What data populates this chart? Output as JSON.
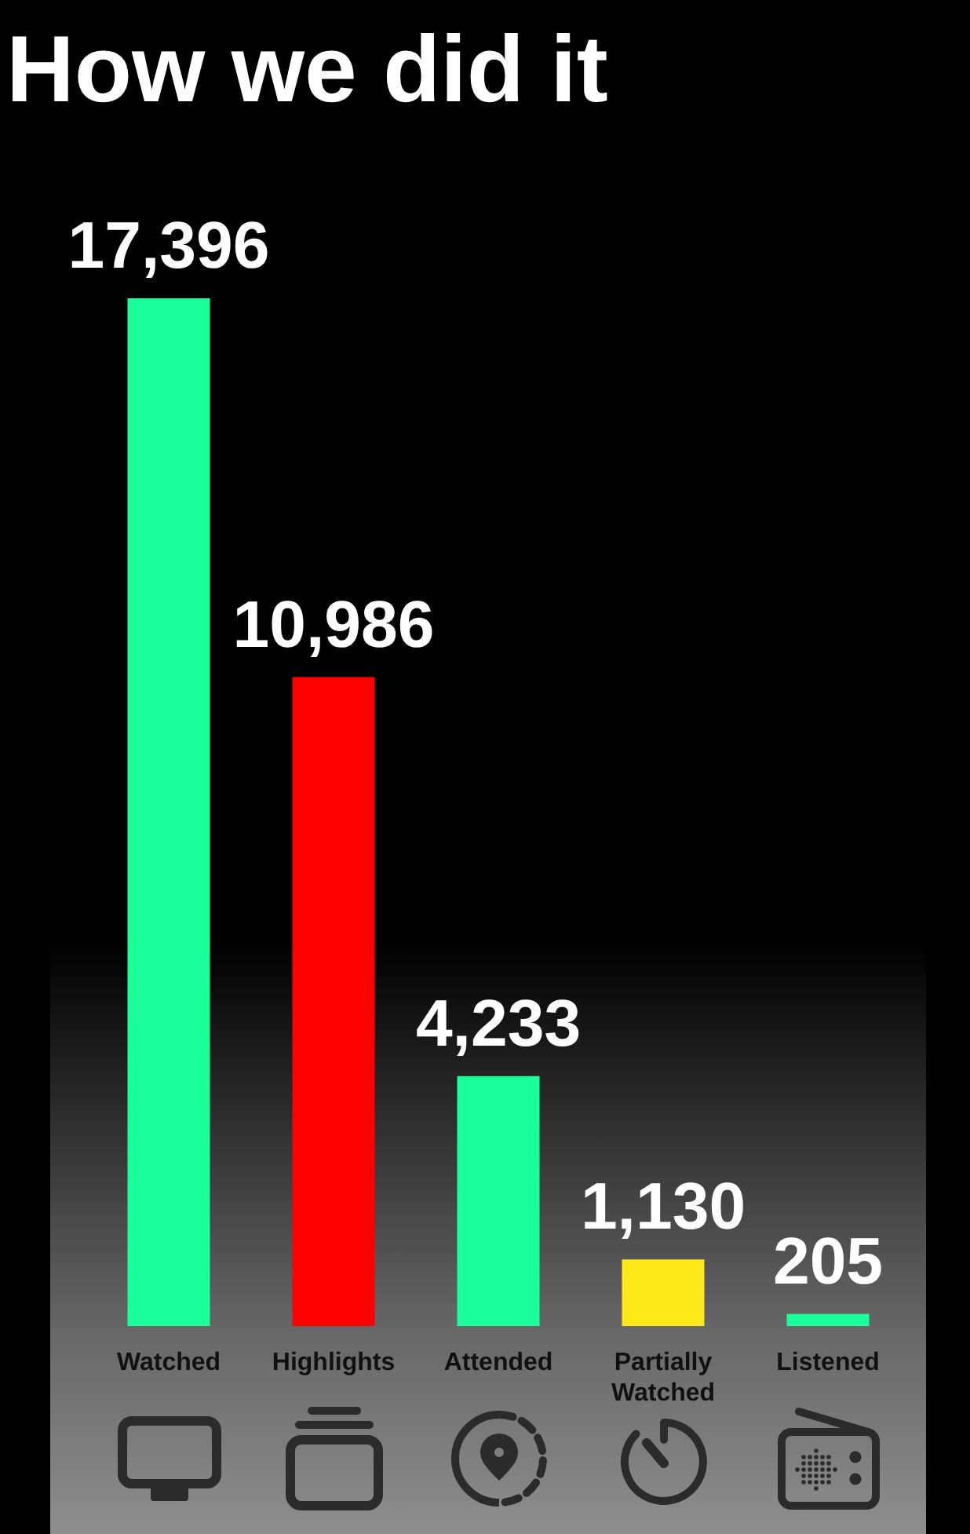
{
  "chart_data": {
    "type": "bar",
    "title": "How we did it",
    "categories": [
      "Watched",
      "Highlights",
      "Attended",
      "Partially Watched",
      "Listened"
    ],
    "values": [
      17396,
      10986,
      4233,
      1130,
      205
    ],
    "value_labels": [
      "17,396",
      "10,986",
      "4,233",
      "1,130",
      "205"
    ],
    "colors": [
      "#1aff9a",
      "#ff0000",
      "#1aff9a",
      "#ffe81a",
      "#1aff9a"
    ]
  }
}
